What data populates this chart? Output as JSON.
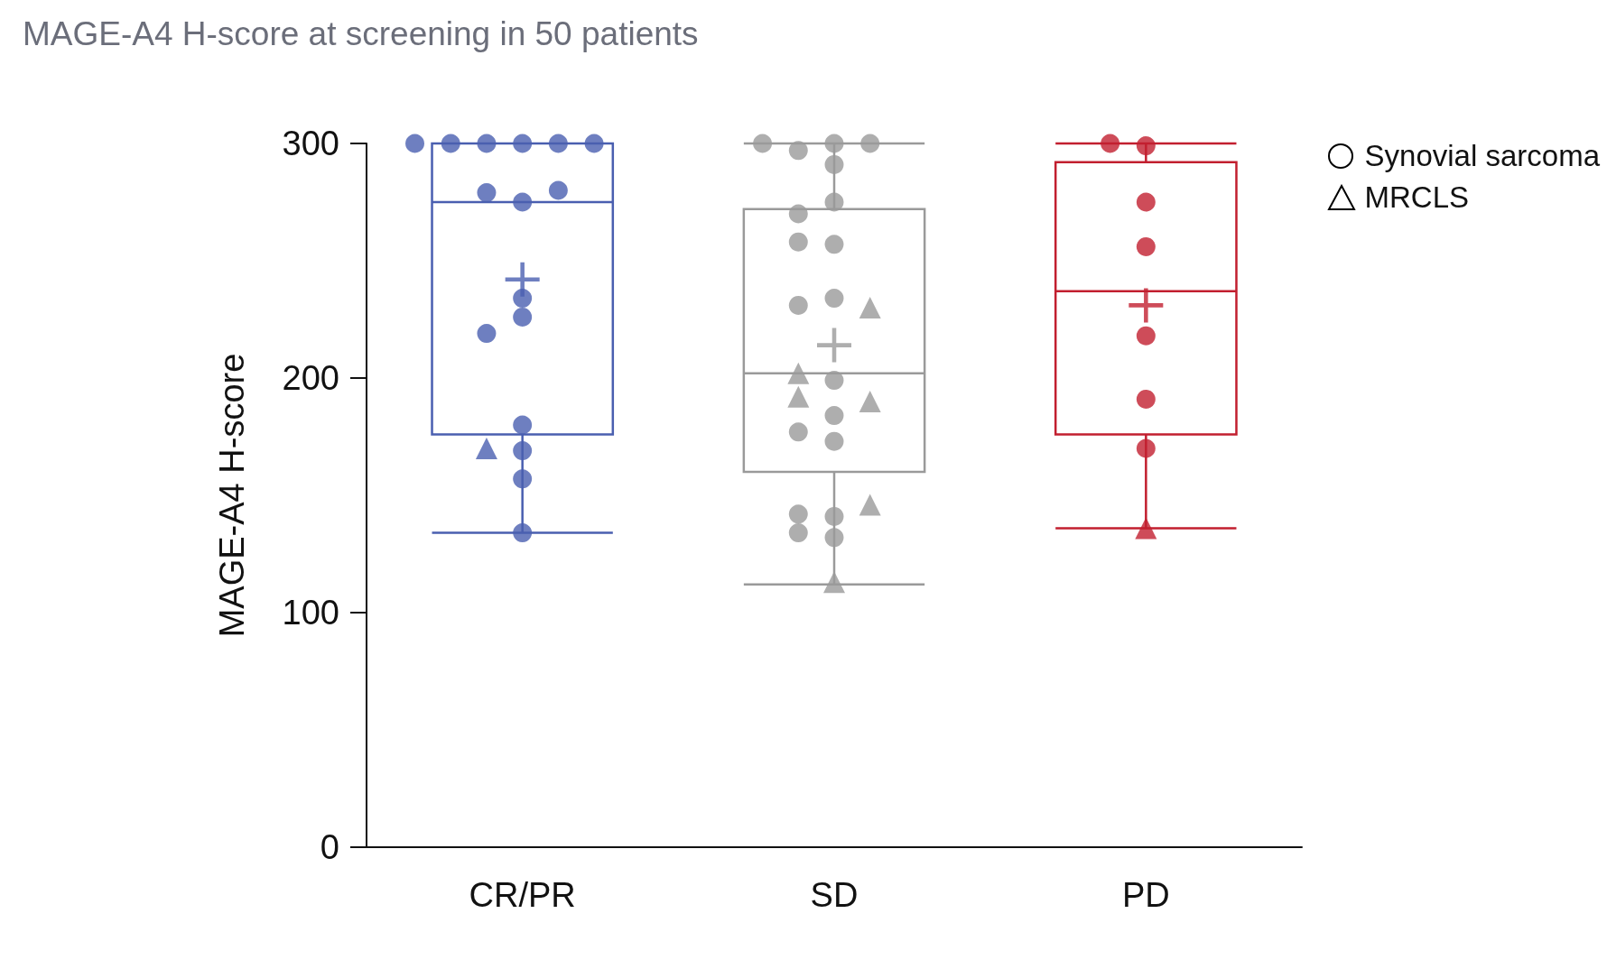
{
  "chart_data": {
    "type": "box",
    "title": "MAGE-A4 H-score at screening in 50 patients",
    "ylabel": "MAGE-A4 H-score",
    "categories": [
      "CR/PR",
      "SD",
      "PD"
    ],
    "ylim": [
      0,
      300
    ],
    "yticks": [
      0,
      100,
      200,
      300
    ],
    "grid": false,
    "legend": "top right",
    "series": [
      {
        "type": "box",
        "colors": [
          "#4a5fb0",
          "#9a9a9a",
          "#c21f2f"
        ],
        "boxes": [
          {
            "low": 134,
            "q1": 176,
            "median": 275,
            "q3": 300,
            "high": 300,
            "mean": 242
          },
          {
            "low": 112,
            "q1": 160,
            "median": 202,
            "q3": 272,
            "high": 300,
            "mean": 214
          },
          {
            "low": 136,
            "q1": 176,
            "median": 237,
            "q3": 292,
            "high": 300,
            "mean": 231
          }
        ]
      },
      {
        "type": "scatter",
        "name": "Synovial sarcoma",
        "marker": "circle",
        "x": [
          "CR/PR",
          "CR/PR",
          "CR/PR",
          "CR/PR",
          "CR/PR",
          "CR/PR",
          "CR/PR",
          "CR/PR",
          "CR/PR",
          "CR/PR",
          "CR/PR",
          "CR/PR",
          "CR/PR",
          "CR/PR",
          "CR/PR",
          "CR/PR",
          "SD",
          "SD",
          "SD",
          "SD",
          "SD",
          "SD",
          "SD",
          "SD",
          "SD",
          "SD",
          "SD",
          "SD",
          "SD",
          "SD",
          "SD",
          "SD",
          "SD",
          "SD",
          "SD",
          "PD",
          "PD",
          "PD",
          "PD",
          "PD",
          "PD",
          "PD"
        ],
        "values": [
          300,
          300,
          300,
          300,
          300,
          300,
          275,
          279,
          280,
          234,
          226,
          219,
          180,
          169,
          157,
          134,
          300,
          297,
          300,
          300,
          291,
          275,
          270,
          257,
          258,
          234,
          231,
          199,
          184,
          177,
          173,
          141,
          142,
          134,
          132,
          299,
          300,
          275,
          256,
          218,
          191,
          170
        ],
        "colors": [
          "#4a5fb0",
          "#4a5fb0",
          "#4a5fb0",
          "#4a5fb0",
          "#4a5fb0",
          "#4a5fb0",
          "#4a5fb0",
          "#4a5fb0",
          "#4a5fb0",
          "#4a5fb0",
          "#4a5fb0",
          "#4a5fb0",
          "#4a5fb0",
          "#4a5fb0",
          "#4a5fb0",
          "#4a5fb0",
          "#9a9a9a",
          "#9a9a9a",
          "#9a9a9a",
          "#9a9a9a",
          "#9a9a9a",
          "#9a9a9a",
          "#9a9a9a",
          "#9a9a9a",
          "#9a9a9a",
          "#9a9a9a",
          "#9a9a9a",
          "#9a9a9a",
          "#9a9a9a",
          "#9a9a9a",
          "#9a9a9a",
          "#9a9a9a",
          "#9a9a9a",
          "#9a9a9a",
          "#9a9a9a",
          "#c21f2f",
          "#c21f2f",
          "#c21f2f",
          "#c21f2f",
          "#c21f2f",
          "#c21f2f",
          "#c21f2f"
        ]
      },
      {
        "type": "scatter",
        "name": "MRCLS",
        "marker": "triangle",
        "x": [
          "CR/PR",
          "SD",
          "SD",
          "SD",
          "SD",
          "SD",
          "SD",
          "PD"
        ],
        "values": [
          170,
          230,
          202,
          192,
          190,
          146,
          113,
          136
        ],
        "colors": [
          "#4a5fb0",
          "#9a9a9a",
          "#9a9a9a",
          "#9a9a9a",
          "#9a9a9a",
          "#9a9a9a",
          "#9a9a9a",
          "#c21f2f"
        ]
      }
    ]
  }
}
